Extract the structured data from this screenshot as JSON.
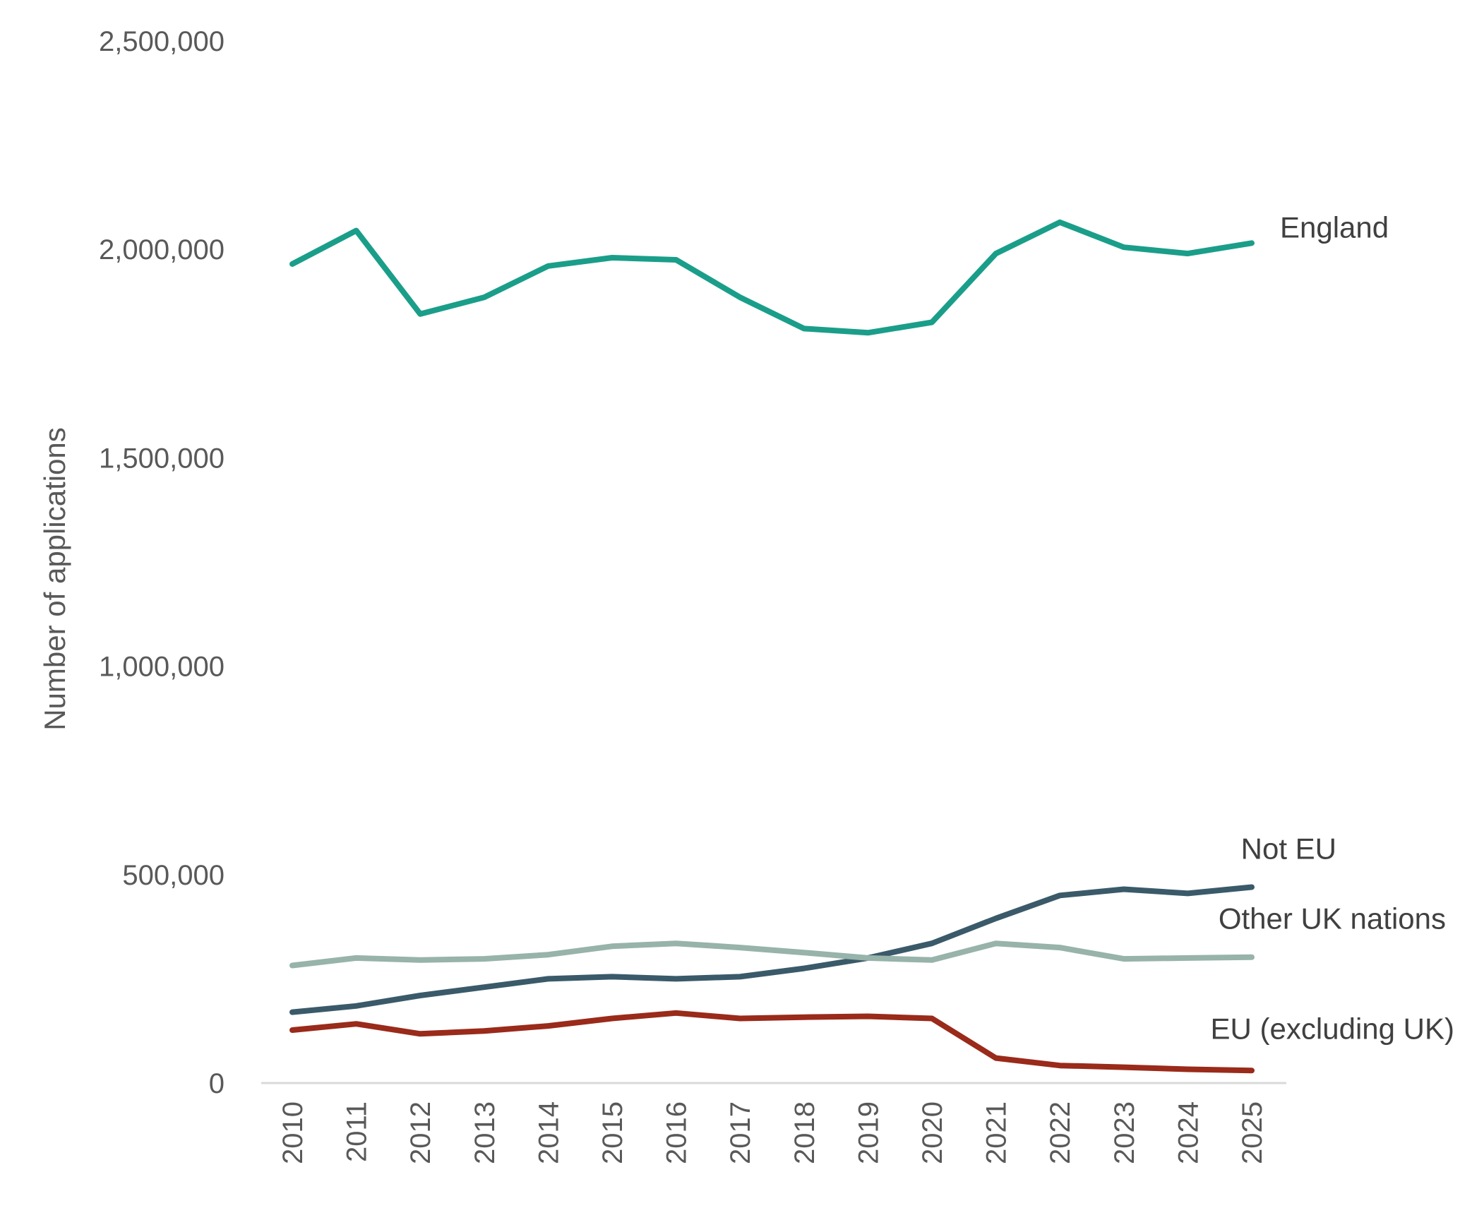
{
  "chart_data": {
    "type": "line",
    "title": "",
    "xlabel": "",
    "ylabel": "Number of applications",
    "ylim": [
      0,
      2500000
    ],
    "yticks": [
      0,
      500000,
      1000000,
      1500000,
      2000000,
      2500000
    ],
    "ytick_labels": [
      "0",
      "500,000",
      "1,000,000",
      "1,500,000",
      "2,000,000",
      "2,500,000"
    ],
    "categories": [
      "2010",
      "2011",
      "2012",
      "2013",
      "2014",
      "2015",
      "2016",
      "2017",
      "2018",
      "2019",
      "2020",
      "2021",
      "2022",
      "2023",
      "2024",
      "2025"
    ],
    "grid": false,
    "legend": "direct labels at line ends",
    "series": [
      {
        "name": "England",
        "color": "#1a9e8a",
        "values": [
          1965000,
          2045000,
          1845000,
          1885000,
          1960000,
          1980000,
          1975000,
          1885000,
          1810000,
          1800000,
          1825000,
          1990000,
          2065000,
          2005000,
          1990000,
          2015000
        ]
      },
      {
        "name": "Not EU",
        "color": "#3a5a6a",
        "values": [
          170000,
          185000,
          210000,
          230000,
          250000,
          255000,
          250000,
          255000,
          275000,
          300000,
          335000,
          395000,
          450000,
          465000,
          455000,
          470000
        ]
      },
      {
        "name": "Other UK nations",
        "color": "#97b3aa",
        "values": [
          282000,
          300000,
          295000,
          298000,
          308000,
          328000,
          335000,
          325000,
          313000,
          300000,
          295000,
          335000,
          325000,
          298000,
          300000,
          302000
        ]
      },
      {
        "name": "EU (excluding UK)",
        "color": "#9a2a1a",
        "values": [
          127000,
          142000,
          118000,
          125000,
          137000,
          155000,
          168000,
          155000,
          158000,
          160000,
          155000,
          60000,
          42000,
          38000,
          33000,
          30000
        ]
      }
    ]
  }
}
